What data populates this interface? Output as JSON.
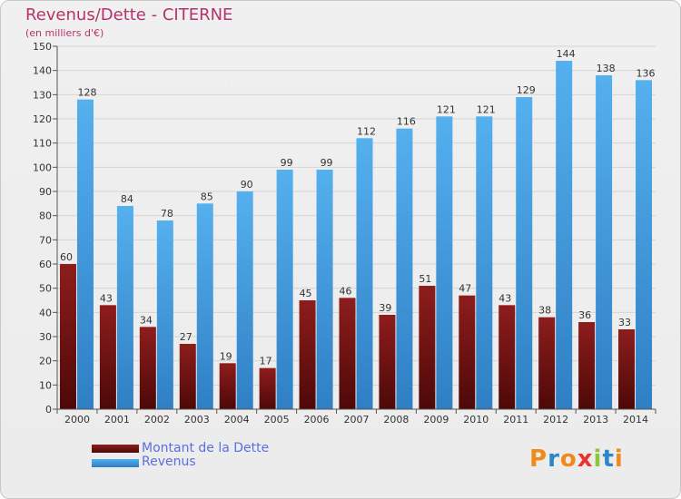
{
  "title": "Revenus/Dette - CITERNE",
  "subtitle": "(en milliers d'€)",
  "logo": {
    "text": "Proxiti",
    "letters": [
      "P",
      "r",
      "o",
      "x",
      "i",
      "t",
      "i"
    ],
    "colors": [
      "#f08a1c",
      "#2e86c9",
      "#f08a1c",
      "#e8342c",
      "#8cc63e",
      "#2e86c9",
      "#f08a1c"
    ]
  },
  "legend": [
    {
      "label": "Montant de la Dette",
      "color": "#7a1414"
    },
    {
      "label": "Revenus",
      "color": "#4aa3e6"
    }
  ],
  "chart_data": {
    "type": "bar",
    "title": "Revenus/Dette - CITERNE",
    "subtitle": "(en milliers d'€)",
    "categories": [
      "2000",
      "2001",
      "2002",
      "2003",
      "2004",
      "2005",
      "2006",
      "2007",
      "2008",
      "2009",
      "2010",
      "2011",
      "2012",
      "2013",
      "2014"
    ],
    "series": [
      {
        "name": "Montant de la Dette",
        "color": "#7a1414",
        "values": [
          60,
          43,
          34,
          27,
          19,
          17,
          45,
          46,
          39,
          51,
          47,
          43,
          38,
          36,
          33
        ]
      },
      {
        "name": "Revenus",
        "color": "#4aa3e6",
        "values": [
          128,
          84,
          78,
          85,
          90,
          99,
          99,
          112,
          116,
          121,
          121,
          129,
          144,
          138,
          136
        ]
      }
    ],
    "ylim": [
      0,
      150
    ],
    "yticks": [
      0,
      10,
      20,
      30,
      40,
      50,
      60,
      70,
      80,
      90,
      100,
      110,
      120,
      130,
      140,
      150
    ],
    "grid": true,
    "legend_position": "bottom-left"
  }
}
